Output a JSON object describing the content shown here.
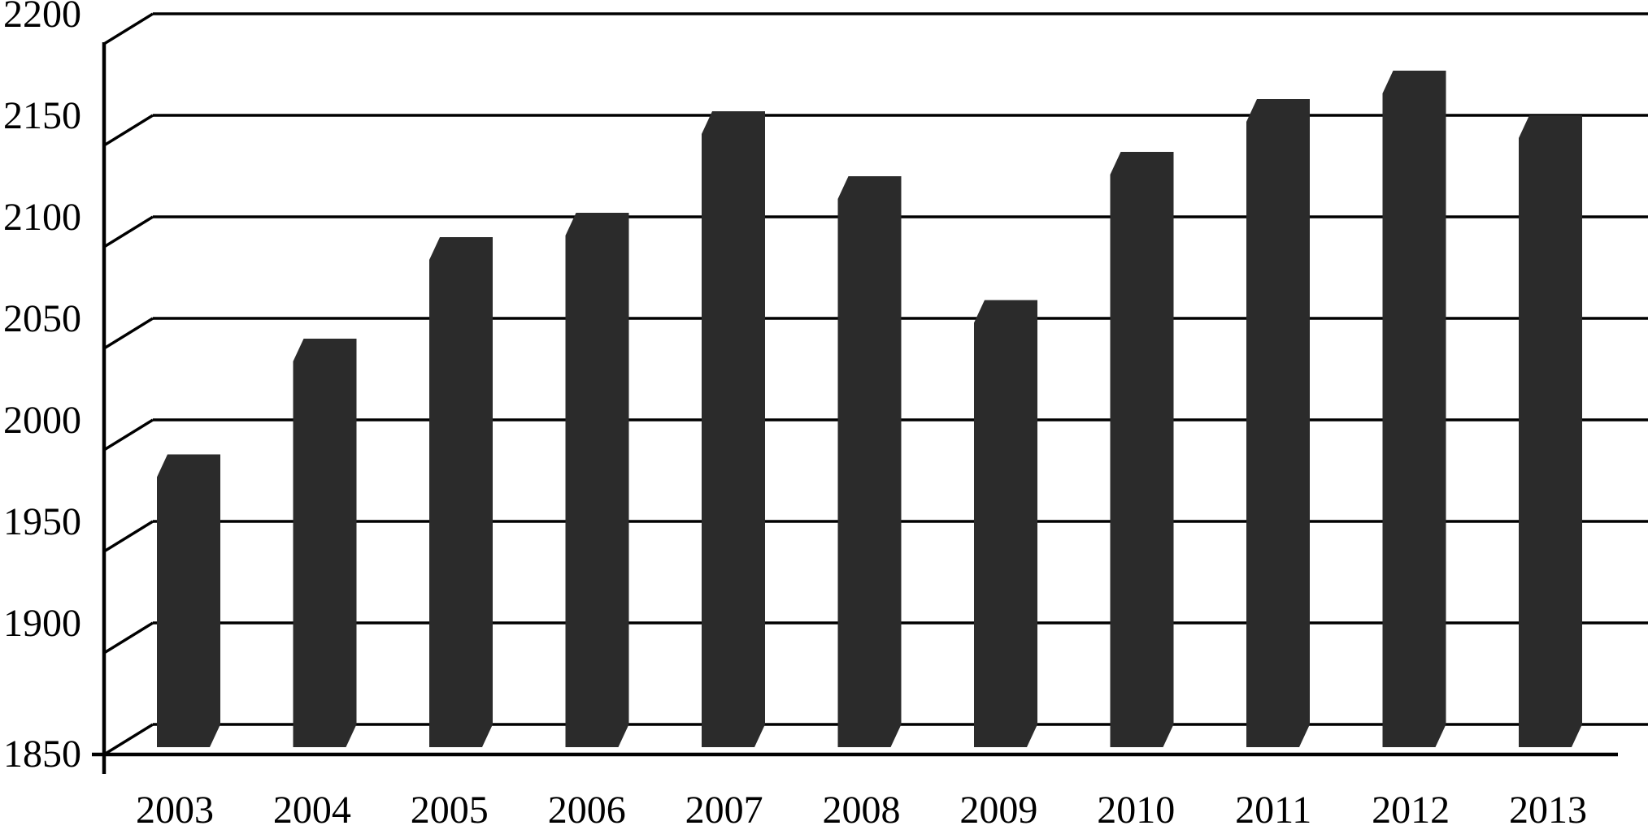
{
  "chart_data": {
    "type": "bar",
    "projection": "3d-oblique",
    "title": "",
    "subtitle": "",
    "xlabel": "",
    "ylabel": "",
    "categories": [
      "2003",
      "2004",
      "2005",
      "2006",
      "2007",
      "2008",
      "2009",
      "2010",
      "2011",
      "2012",
      "2013"
    ],
    "values": [
      1983,
      2040,
      2090,
      2102,
      2152,
      2120,
      2059,
      2132,
      2158,
      2172,
      2150
    ],
    "ylim": [
      1850,
      2200
    ],
    "ytick_step": 50,
    "yticks": [
      1850,
      1900,
      1950,
      2000,
      2050,
      2100,
      2150,
      2200
    ],
    "grid": true,
    "legend": false,
    "bar_color": "#2b2b2b",
    "line_color": "#000000",
    "text_color": "#000000",
    "background": "#ffffff"
  }
}
